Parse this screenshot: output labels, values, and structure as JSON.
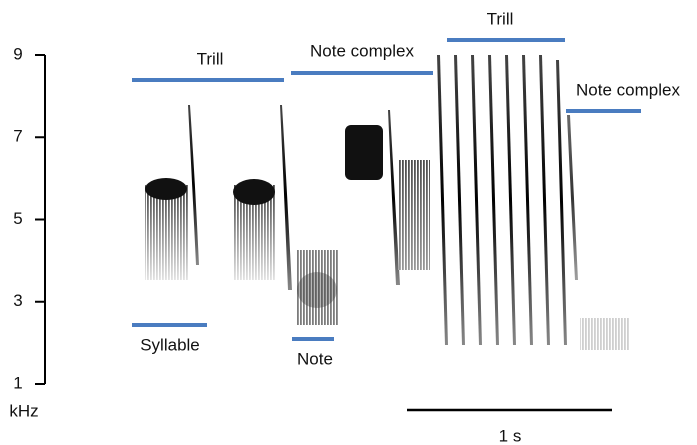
{
  "chart_data": {
    "type": "spectrogram",
    "y_label": "kHz",
    "ylim": [
      1,
      9
    ],
    "yticks": [
      1,
      3,
      5,
      7,
      9
    ],
    "annotations": [
      "Trill",
      "Note complex",
      "Trill",
      "Note complex",
      "Syllable",
      "Note"
    ],
    "scale_bar_label": "1 s"
  }
}
